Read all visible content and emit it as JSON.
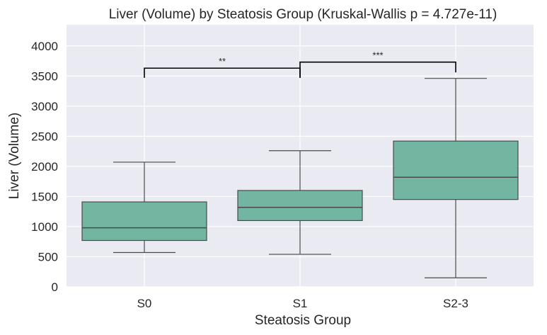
{
  "chart_data": {
    "type": "box",
    "title": "Liver (Volume) by Steatosis Group (Kruskal-Wallis p = 4.727e-11)",
    "xlabel": "Steatosis Group",
    "ylabel": "Liver (Volume)",
    "ylim": [
      0,
      4350
    ],
    "yticks": [
      "0",
      "500",
      "1000",
      "1500",
      "2000",
      "2500",
      "3000",
      "3500",
      "4000"
    ],
    "ytick_values": [
      0,
      500,
      1000,
      1500,
      2000,
      2500,
      3000,
      3500,
      4000
    ],
    "categories": [
      "S0",
      "S1",
      "S2-3"
    ],
    "boxes": [
      {
        "category": "S0",
        "whisker_low": 570,
        "q1": 770,
        "median": 980,
        "q3": 1410,
        "whisker_high": 2070
      },
      {
        "category": "S1",
        "whisker_low": 540,
        "q1": 1100,
        "median": 1320,
        "q3": 1600,
        "whisker_high": 2260
      },
      {
        "category": "S2-3",
        "whisker_low": 150,
        "q1": 1450,
        "median": 1820,
        "q3": 2420,
        "whisker_high": 3460
      }
    ],
    "significance": [
      {
        "from": 0,
        "to": 1,
        "label": "**",
        "y": 3630,
        "drop_left": 3470,
        "drop_right": 3470
      },
      {
        "from": 1,
        "to": 2,
        "label": "***",
        "y": 3730,
        "drop_left": 3470,
        "drop_right": 3560
      }
    ],
    "grid": true,
    "colors": {
      "background": "#EAEAF2",
      "grid": "#FFFFFF",
      "box_fill": "#72B6A1",
      "box_edge": "#4A4A4A",
      "bracket": "#000000",
      "text": "#262626"
    }
  }
}
